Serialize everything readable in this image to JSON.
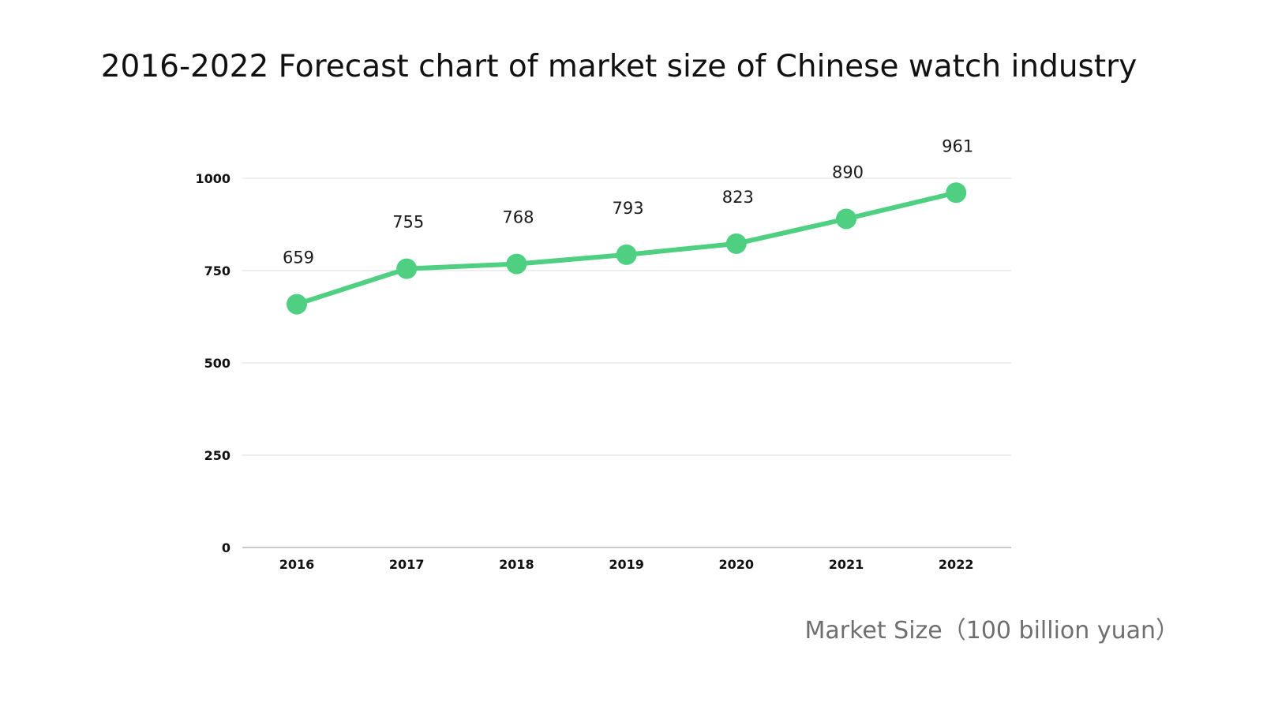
{
  "chart_data": {
    "type": "line",
    "title": "2016-2022 Forecast chart of market size of Chinese watch industry",
    "xlabel": "",
    "ylabel": "",
    "categories": [
      "2016",
      "2017",
      "2018",
      "2019",
      "2020",
      "2021",
      "2022"
    ],
    "series": [
      {
        "name": "Market Size（100 billion yuan）",
        "values": [
          659,
          755,
          768,
          793,
          823,
          890,
          961
        ],
        "color": "#4ecf82"
      }
    ],
    "ylim": [
      0,
      1000
    ],
    "yticks": [
      0,
      250,
      500,
      750,
      1000
    ],
    "ytick_labels": [
      "0",
      "250",
      "500",
      "750",
      "1000"
    ],
    "grid": true,
    "data_labels": true,
    "legend": {
      "position": "bottom-right",
      "entries": [
        "Market Size（100 billion yuan）"
      ]
    }
  }
}
